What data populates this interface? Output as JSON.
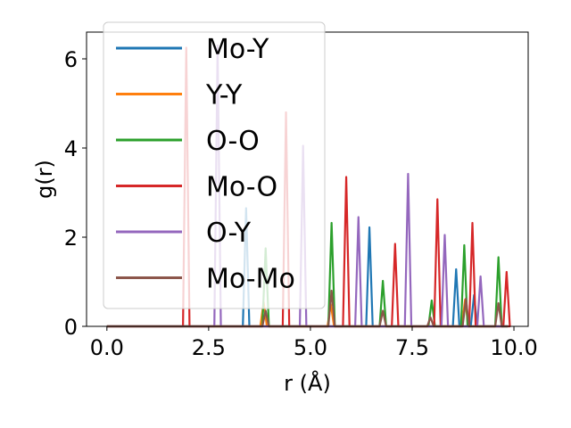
{
  "chart_data": {
    "type": "line",
    "xlabel": "r (Å)",
    "ylabel": "g(r)",
    "xlim": [
      -0.5,
      10.35
    ],
    "ylim": [
      0,
      6.6
    ],
    "xticks": [
      0.0,
      2.5,
      5.0,
      7.5,
      10.0
    ],
    "xtick_labels": [
      "0.0",
      "2.5",
      "5.0",
      "7.5",
      "10.0"
    ],
    "yticks": [
      0,
      2,
      4,
      6
    ],
    "ytick_labels": [
      "0",
      "2",
      "4",
      "6"
    ],
    "legend_position": "top-left",
    "peak_half_width": 0.08,
    "x_range": [
      0.0,
      9.85
    ],
    "series": [
      {
        "name": "Mo-Y",
        "color": "#1f77b4",
        "peaks": [
          [
            3.42,
            2.65
          ],
          [
            6.45,
            2.22
          ],
          [
            8.58,
            1.28
          ],
          [
            9.02,
            0.7
          ]
        ]
      },
      {
        "name": "Y-Y",
        "color": "#ff7f0e",
        "peaks": [
          [
            3.85,
            0.55
          ],
          [
            5.5,
            0.5
          ],
          [
            8.8,
            0.6
          ]
        ]
      },
      {
        "name": "O-O",
        "color": "#2ca02c",
        "peaks": [
          [
            3.9,
            1.75
          ],
          [
            5.52,
            2.32
          ],
          [
            6.78,
            1.02
          ],
          [
            7.98,
            0.58
          ],
          [
            8.78,
            1.82
          ],
          [
            9.62,
            1.55
          ]
        ]
      },
      {
        "name": "Mo-O",
        "color": "#d62728",
        "peaks": [
          [
            1.95,
            6.25
          ],
          [
            4.4,
            4.8
          ],
          [
            5.88,
            3.35
          ],
          [
            7.08,
            1.85
          ],
          [
            8.12,
            2.85
          ],
          [
            8.98,
            2.32
          ],
          [
            9.82,
            1.22
          ]
        ]
      },
      {
        "name": "O-Y",
        "color": "#9467bd",
        "peaks": [
          [
            2.72,
            6.3
          ],
          [
            4.82,
            4.05
          ],
          [
            6.18,
            2.45
          ],
          [
            7.4,
            3.42
          ],
          [
            8.3,
            2.05
          ],
          [
            9.18,
            1.12
          ]
        ]
      },
      {
        "name": "Mo-Mo",
        "color": "#8c564b",
        "peaks": [
          [
            3.9,
            0.35
          ],
          [
            5.52,
            0.8
          ],
          [
            6.78,
            0.35
          ],
          [
            7.95,
            0.2
          ],
          [
            8.82,
            0.62
          ],
          [
            9.62,
            0.52
          ]
        ]
      }
    ]
  }
}
